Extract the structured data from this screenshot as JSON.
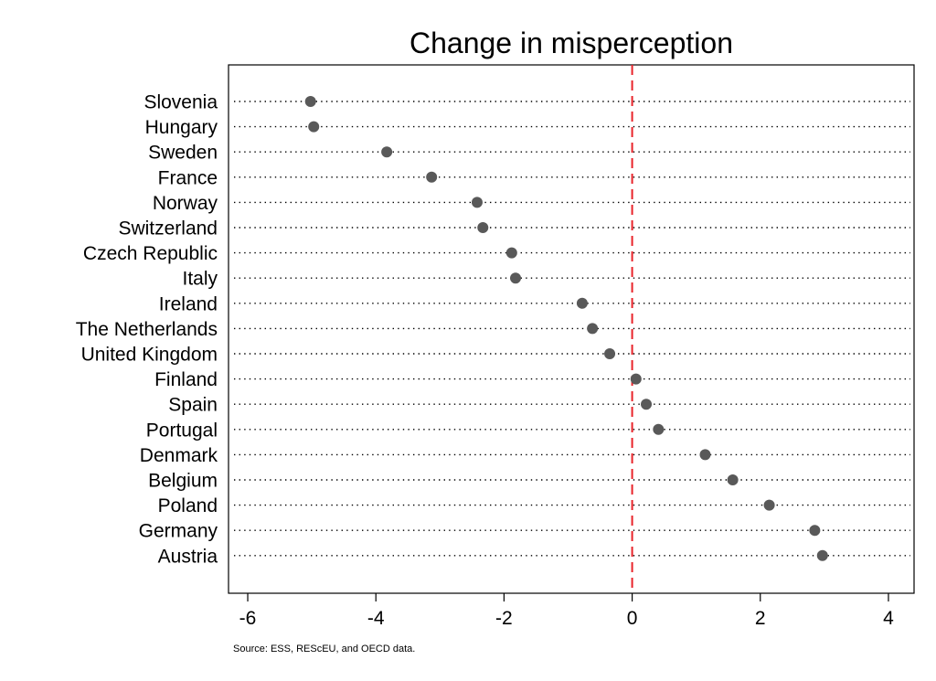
{
  "chart_data": {
    "type": "scatter",
    "title": "Change in misperception",
    "xlabel": "",
    "ylabel": "",
    "xlim": [
      -6.3,
      4.4
    ],
    "xticks": [
      -6,
      -4,
      -2,
      0,
      2,
      4
    ],
    "xtick_labels": [
      "-6",
      "-4",
      "-2",
      "0",
      "2",
      "4"
    ],
    "reference_line": {
      "x": 0,
      "color": "#e8232a",
      "style": "dashed"
    },
    "grid": "dotted horizontal guide per category",
    "point_color": "#595959",
    "categories": [
      "Slovenia",
      "Hungary",
      "Sweden",
      "France",
      "Norway",
      "Switzerland",
      "Czech Republic",
      "Italy",
      "Ireland",
      "The Netherlands",
      "United Kingdom",
      "Finland",
      "Spain",
      "Portugal",
      "Denmark",
      "Belgium",
      "Poland",
      "Germany",
      "Austria"
    ],
    "values": [
      -5.02,
      -4.97,
      -3.83,
      -3.13,
      -2.42,
      -2.33,
      -1.88,
      -1.82,
      -0.78,
      -0.62,
      -0.35,
      0.06,
      0.22,
      0.41,
      1.14,
      1.57,
      2.14,
      2.85,
      2.97
    ]
  },
  "source_note": "Source: ESS, REScEU, and OECD data."
}
